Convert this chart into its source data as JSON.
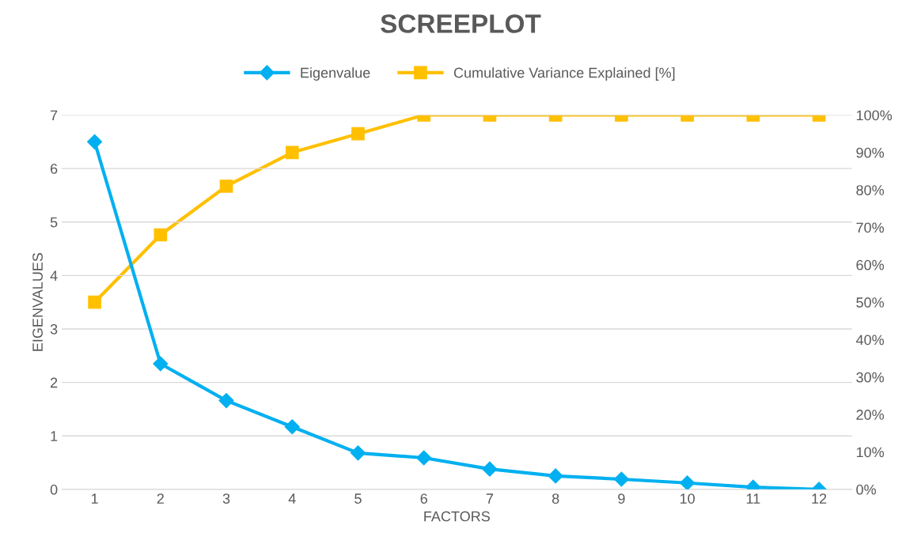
{
  "chart_data": {
    "type": "line",
    "title": "SCREEPLOT",
    "xlabel": "FACTORS",
    "ylabel": "EIGENVALUES",
    "categories": [
      "1",
      "2",
      "3",
      "4",
      "5",
      "6",
      "7",
      "8",
      "9",
      "10",
      "11",
      "12"
    ],
    "series": [
      {
        "name": "Eigenvalue",
        "color": "#00b0f0",
        "marker": "diamond",
        "values": [
          6.5,
          2.35,
          1.66,
          1.17,
          0.68,
          0.59,
          0.38,
          0.25,
          0.19,
          0.12,
          0.04,
          0.0
        ]
      },
      {
        "name": "Cumulative Variance Explained [%]",
        "color": "#ffc000",
        "marker": "square",
        "axis": "y2",
        "values": [
          50,
          68,
          81,
          90,
          95,
          100,
          100,
          100,
          100,
          100,
          100,
          100
        ]
      }
    ],
    "ylim": [
      0,
      7
    ],
    "yticks": [
      0,
      1,
      2,
      3,
      4,
      5,
      6,
      7
    ],
    "y2lim": [
      0,
      100
    ],
    "y2ticks": [
      {
        "value": 0,
        "label": "0%"
      },
      {
        "value": 10,
        "label": "10%"
      },
      {
        "value": 20,
        "label": "20%"
      },
      {
        "value": 30,
        "label": "30%"
      },
      {
        "value": 40,
        "label": "40%"
      },
      {
        "value": 50,
        "label": "50%"
      },
      {
        "value": 60,
        "label": "60%"
      },
      {
        "value": 70,
        "label": "70%"
      },
      {
        "value": 80,
        "label": "80%"
      },
      {
        "value": 90,
        "label": "90%"
      },
      {
        "value": 100,
        "label": "100%"
      }
    ],
    "grid": "y",
    "legend": "top",
    "line_style": "solid"
  }
}
